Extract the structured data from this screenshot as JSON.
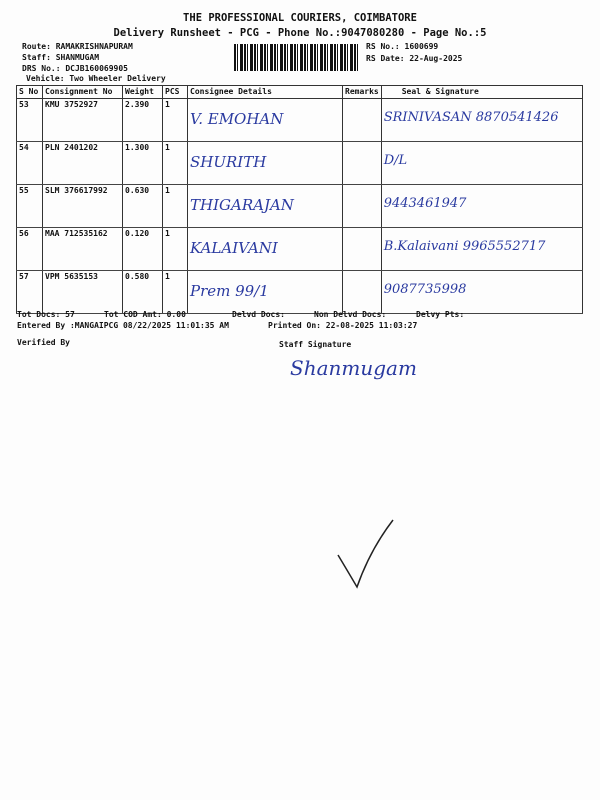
{
  "header": {
    "title": "THE PROFESSIONAL COURIERS, COIMBATORE",
    "subtitle": "Delivery Runsheet - PCG - Phone No.:9047080280 - Page No.:5",
    "route": "Route: RAMAKRISHNAPURAM",
    "staff": "Staff: SHANMUGAM",
    "drs_no": "DRS No.: DCJB160069905",
    "vehicle": "Vehicle: Two Wheeler Delivery",
    "rs_no": "RS No.: 1600699",
    "rs_date": "RS Date: 22-Aug-2025"
  },
  "table": {
    "columns": [
      "S No",
      "Consignment No",
      "Weight",
      "PCS",
      "Consignee Details",
      "Remarks",
      "Seal & Signature"
    ],
    "rows": [
      {
        "sno": "53",
        "consignment": "KMU 3752927",
        "weight": "2.390",
        "pcs": "1",
        "consignee": "V. EMOHAN",
        "remarks": "",
        "seal": "SRINIVASAN 8870541426"
      },
      {
        "sno": "54",
        "consignment": "PLN 2401202",
        "weight": "1.300",
        "pcs": "1",
        "consignee": "SHURITH",
        "remarks": "",
        "seal": "D/L"
      },
      {
        "sno": "55",
        "consignment": "SLM 376617992",
        "weight": "0.630",
        "pcs": "1",
        "consignee": "THIGARAJAN",
        "remarks": "",
        "seal": "9443461947"
      },
      {
        "sno": "56",
        "consignment": "MAA 712535162",
        "weight": "0.120",
        "pcs": "1",
        "consignee": "KALAIVANI",
        "remarks": "",
        "seal": "B.Kalaivani 9965552717"
      },
      {
        "sno": "57",
        "consignment": "VPM 5635153",
        "weight": "0.580",
        "pcs": "1",
        "consignee": "Prem 99/1",
        "remarks": "",
        "seal": "9087735998"
      }
    ]
  },
  "footer": {
    "tot_docs": "Tot Docs:  57",
    "tot_cod": "Tot COD Amt:   0.00",
    "delvd": "Delvd Docs:",
    "non_delvd": "Non Delvd Docs:",
    "delvy_pts": "Delvy Pts:",
    "entered_by": "Entered By :MANGAIPCG 08/22/2025 11:01:35 AM",
    "printed_on": "Printed On: 22-08-2025 11:03:27",
    "verified_by": "Verified By",
    "staff_signature": "Staff Signature",
    "signature_text": "Shanmugam"
  }
}
